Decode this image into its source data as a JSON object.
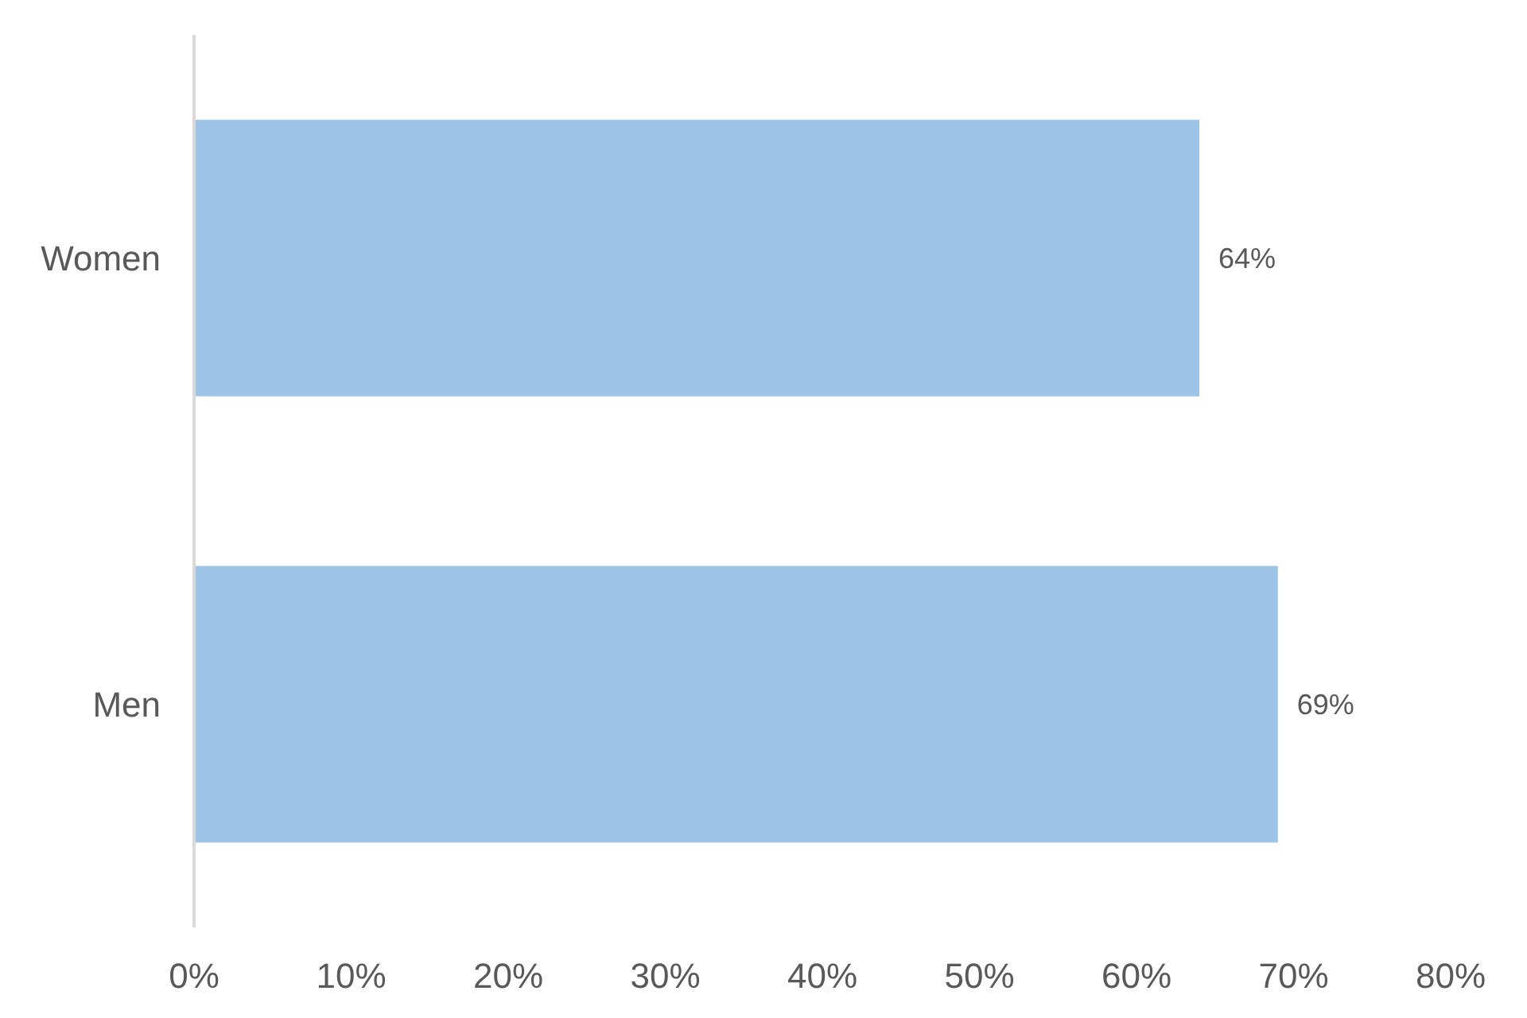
{
  "chart_data": {
    "type": "bar",
    "orientation": "horizontal",
    "categories": [
      "Women",
      "Men"
    ],
    "values": [
      64,
      69
    ],
    "value_labels": [
      "64%",
      "69%"
    ],
    "color": "#9dc3e6",
    "xlim": [
      0,
      80
    ],
    "xticks": [
      {
        "value": 0,
        "label": "0%"
      },
      {
        "value": 10,
        "label": "10%"
      },
      {
        "value": 20,
        "label": "20%"
      },
      {
        "value": 30,
        "label": "30%"
      },
      {
        "value": 40,
        "label": "40%"
      },
      {
        "value": 50,
        "label": "50%"
      },
      {
        "value": 60,
        "label": "60%"
      },
      {
        "value": 70,
        "label": "70%"
      },
      {
        "value": 80,
        "label": "80%"
      }
    ]
  }
}
